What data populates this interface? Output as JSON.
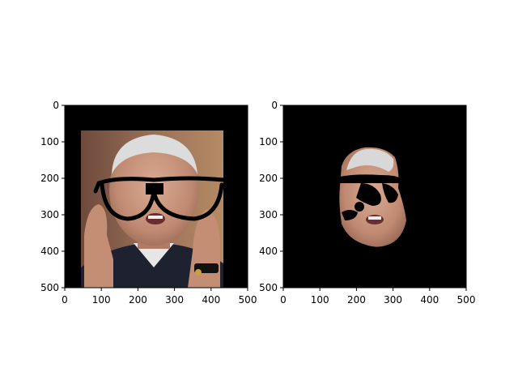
{
  "figure": {
    "background": "#ffffff"
  },
  "chart_data": [
    {
      "type": "image",
      "content": "portrait photo of an elderly man in a dark jacket with black glasses overlay, hands raised near face",
      "xlim": [
        0,
        500
      ],
      "ylim": [
        500,
        0
      ],
      "xticks": [
        0,
        100,
        200,
        300,
        400,
        500
      ],
      "yticks": [
        0,
        100,
        200,
        300,
        400,
        500
      ],
      "colors": {
        "background_fill": "#000000",
        "photo_bg": "#8a6048",
        "skin": "#c89a82",
        "hair": "#d8d8d8",
        "jacket": "#1e2230",
        "glasses": "#000000"
      }
    },
    {
      "type": "image",
      "content": "segmented face region only with black glasses mask, rest of frame black",
      "xlim": [
        0,
        500
      ],
      "ylim": [
        500,
        0
      ],
      "xticks": [
        0,
        100,
        200,
        300,
        400,
        500
      ],
      "yticks": [
        0,
        100,
        200,
        300,
        400,
        500
      ],
      "colors": {
        "background_fill": "#000000",
        "skin": "#c89a82",
        "hair": "#d8d8d8",
        "glasses": "#000000"
      }
    }
  ]
}
